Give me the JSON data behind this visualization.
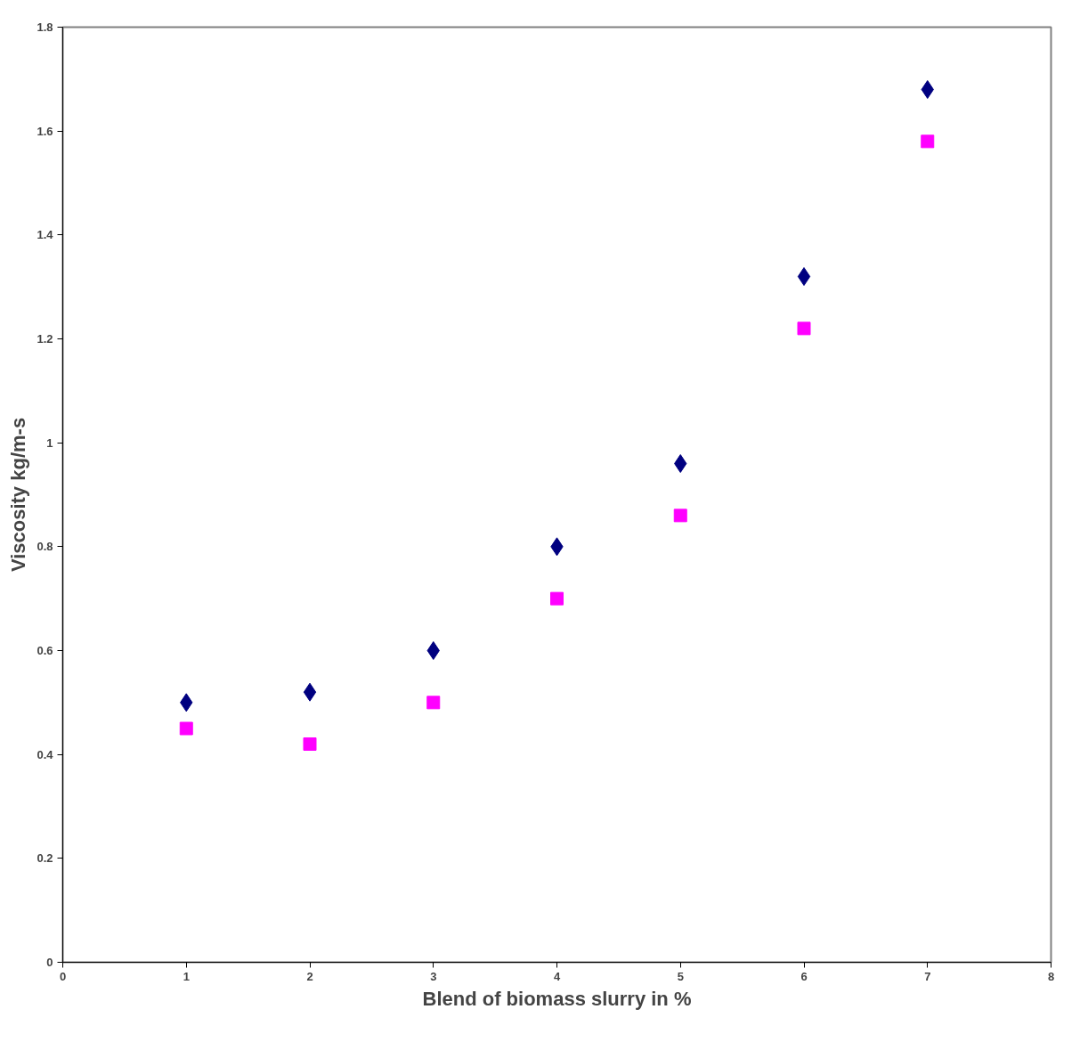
{
  "chart_data": {
    "type": "scatter",
    "xlabel": "Blend of biomass slurry in %",
    "ylabel": "Viscosity kg/m-s",
    "x": [
      1,
      2,
      3,
      4,
      5,
      6,
      7
    ],
    "series": [
      {
        "color": "#000080",
        "marker": "diamond",
        "values": [
          0.5,
          0.52,
          0.6,
          0.8,
          0.96,
          1.32,
          1.68
        ]
      },
      {
        "color": "#ff00ff",
        "marker": "square",
        "values": [
          0.45,
          0.42,
          0.5,
          0.7,
          0.86,
          1.22,
          1.58
        ]
      }
    ],
    "xlim": [
      0,
      8
    ],
    "xticks": [
      0,
      1,
      2,
      3,
      4,
      5,
      6,
      7,
      8
    ],
    "ylim": [
      0,
      1.8
    ],
    "yticks": [
      0,
      0.2,
      0.4,
      0.6,
      0.8,
      1,
      1.2,
      1.4,
      1.6,
      1.8
    ],
    "grid": false
  }
}
